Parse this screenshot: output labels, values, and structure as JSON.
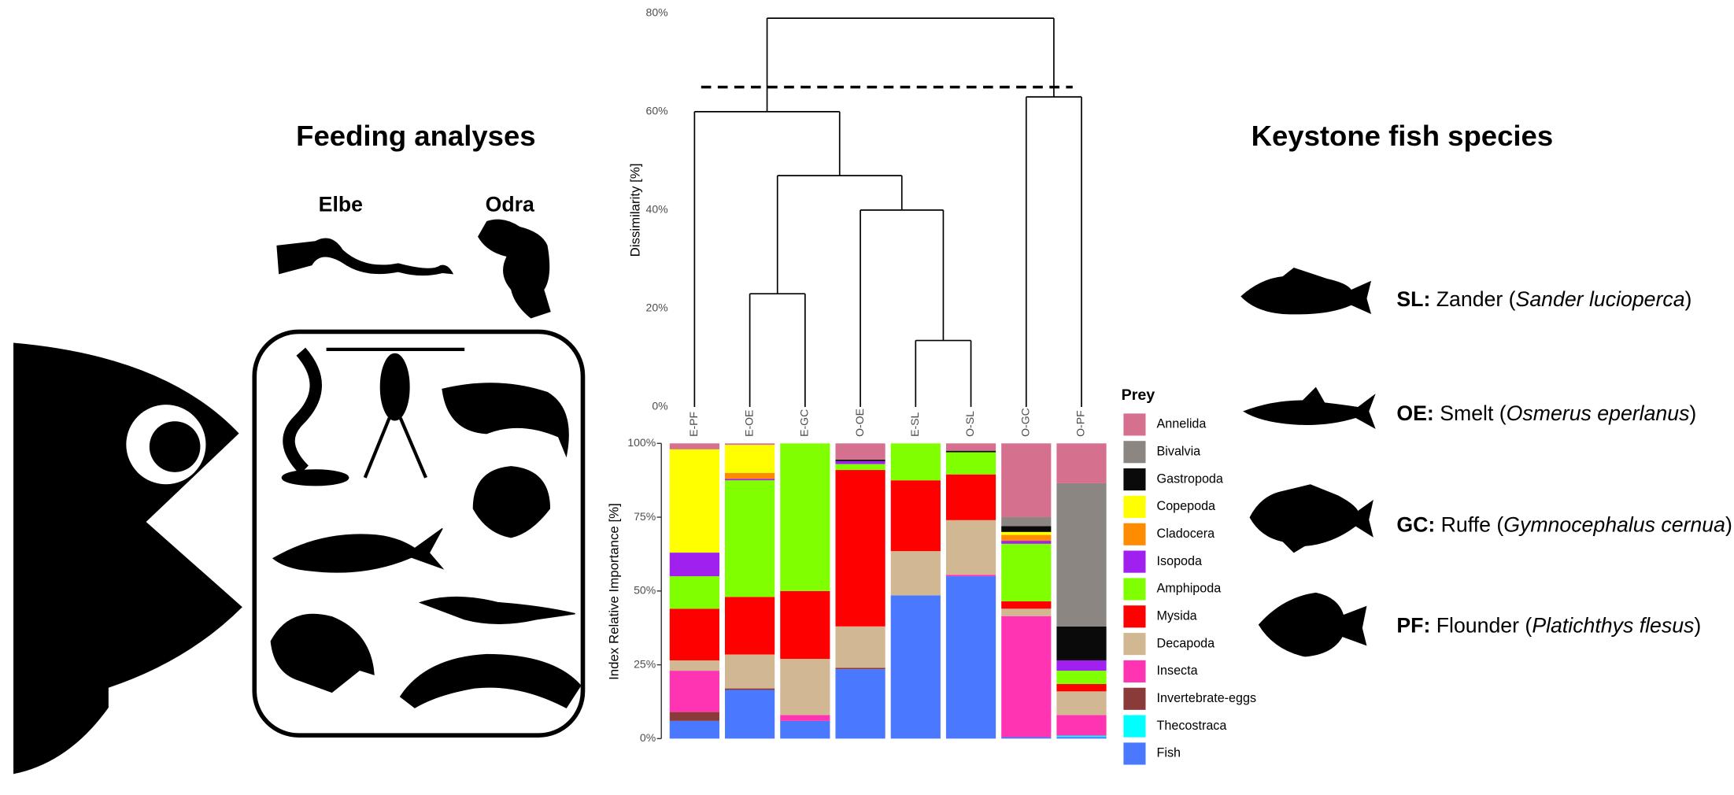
{
  "header": {
    "left_title": "Feeding analyses",
    "right_title": "Keystone fish species",
    "rivers": [
      "Elbe",
      "Odra"
    ]
  },
  "species": [
    {
      "code": "SL:",
      "name": " Zander (",
      "latin": "Sander lucioperca",
      "close": ")"
    },
    {
      "code": "OE:",
      "name": " Smelt (",
      "latin": "Osmerus eperlanus",
      "close": ")"
    },
    {
      "code": "GC:",
      "name": " Ruffe (",
      "latin": "Gymnocephalus cernua",
      "close": ")"
    },
    {
      "code": "PF:",
      "name": " Flounder (",
      "latin": "Platichthys flesus",
      "close": ")"
    }
  ],
  "chart_data": [
    {
      "type": "dendrogram",
      "ylabel": "Dissimilarity [%]",
      "ylim": [
        0,
        80
      ],
      "yticks": [
        {
          "value": 0,
          "label": "0%"
        },
        {
          "value": 20,
          "label": "20%"
        },
        {
          "value": 40,
          "label": "40%"
        },
        {
          "value": 60,
          "label": "60%"
        },
        {
          "value": 80,
          "label": "80%"
        }
      ],
      "cutoff": 65,
      "tree": {
        "height": 79,
        "children": [
          {
            "height": 60,
            "children": [
              0,
              {
                "height": 47,
                "children": [
                  {
                    "height": 23,
                    "children": [
                      1,
                      2
                    ]
                  },
                  {
                    "height": 40,
                    "children": [
                      3,
                      {
                        "height": 13.5,
                        "children": [
                          4,
                          5
                        ]
                      }
                    ]
                  }
                ]
              }
            ]
          },
          {
            "height": 63,
            "children": [
              6,
              7
            ]
          }
        ]
      }
    },
    {
      "type": "bar",
      "stacked": true,
      "ylabel": "Index Relative Importance [%]",
      "legend_title": "Prey",
      "categories": [
        "E-PF",
        "E-OE",
        "E-GC",
        "O-OE",
        "E-SL",
        "O-SL",
        "O-GC",
        "O-PF"
      ],
      "ylim": [
        0,
        100
      ],
      "yticks": [
        {
          "value": 0,
          "label": "0%"
        },
        {
          "value": 25,
          "label": "25%"
        },
        {
          "value": 50,
          "label": "50%"
        },
        {
          "value": 75,
          "label": "75%"
        },
        {
          "value": 100,
          "label": "100%"
        }
      ],
      "series": [
        {
          "name": "Annelida",
          "color": "#d6708f",
          "values": [
            2,
            0.5,
            0,
            5.5,
            0,
            2.5,
            25,
            13.5
          ]
        },
        {
          "name": "Bivalvia",
          "color": "#8b8682",
          "values": [
            0,
            0,
            0,
            0,
            0,
            0,
            3,
            48.5
          ]
        },
        {
          "name": "Gastropoda",
          "color": "#0a0a0a",
          "values": [
            0,
            0,
            0,
            0.5,
            0,
            0.5,
            2,
            11.5
          ]
        },
        {
          "name": "Copepoda",
          "color": "#ffff00",
          "values": [
            35,
            9.5,
            0,
            0,
            0,
            0,
            1,
            0
          ]
        },
        {
          "name": "Cladocera",
          "color": "#ff8c00",
          "values": [
            0,
            2,
            0,
            0,
            0,
            0,
            2,
            0
          ]
        },
        {
          "name": "Isopoda",
          "color": "#a020f0",
          "values": [
            8,
            0.5,
            0,
            1,
            0,
            0,
            1,
            3.5
          ]
        },
        {
          "name": "Amphipoda",
          "color": "#7fff00",
          "values": [
            11,
            39.5,
            50,
            2,
            12.5,
            7.5,
            19.5,
            4.5
          ]
        },
        {
          "name": "Mysida",
          "color": "#ff0000",
          "values": [
            17.5,
            19.5,
            23,
            53,
            24,
            15.5,
            2.5,
            2.5
          ]
        },
        {
          "name": "Decapoda",
          "color": "#d2b793",
          "values": [
            3.5,
            11.5,
            19,
            14,
            15,
            18.5,
            2.5,
            8
          ]
        },
        {
          "name": "Insecta",
          "color": "#ff34b3",
          "values": [
            14,
            0,
            2,
            0,
            0,
            0.5,
            41,
            7
          ]
        },
        {
          "name": "Invertebrate-eggs",
          "color": "#8b3a3a",
          "values": [
            3,
            0.5,
            0,
            0.5,
            0,
            0,
            0,
            0
          ]
        },
        {
          "name": "Thecostraca",
          "color": "#00ffff",
          "values": [
            0,
            0,
            0,
            0,
            0,
            0,
            0,
            0.5
          ]
        },
        {
          "name": "Fish",
          "color": "#4a78ff",
          "values": [
            6,
            16.5,
            6,
            23.5,
            48.5,
            55,
            0.5,
            0.5
          ]
        }
      ]
    }
  ]
}
